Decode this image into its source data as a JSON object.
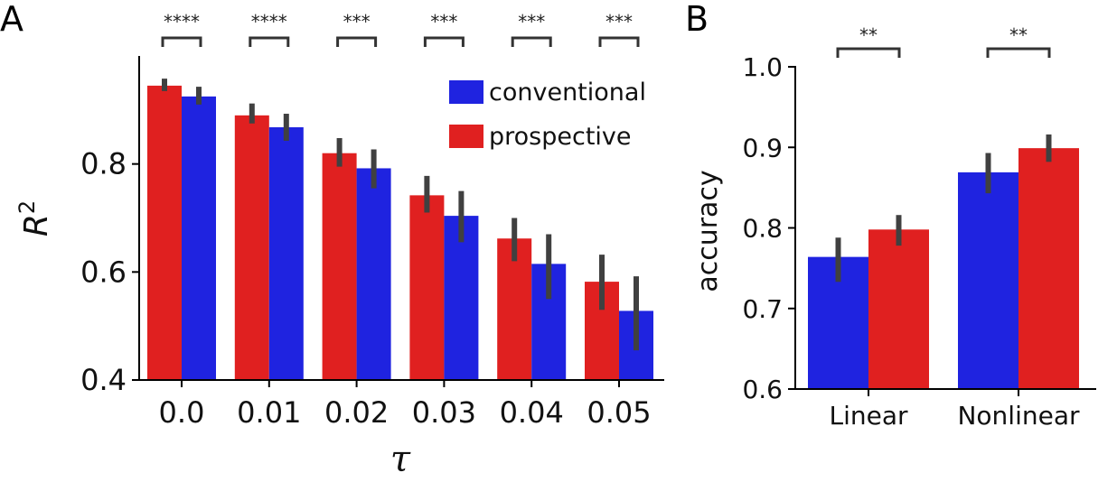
{
  "colors": {
    "conventional": "#1f23e0",
    "prospective": "#e02020",
    "errorbar": "#404040"
  },
  "chart_data": [
    {
      "type": "bar",
      "panel_label": "A",
      "xlabel": "τ",
      "ylabel": "R",
      "ylabel_superscript": "2",
      "ylim": [
        0.4,
        1.0
      ],
      "yticks": [
        0.4,
        0.6,
        0.8
      ],
      "ytick_labels": [
        "0.4",
        "0.6",
        "0.8"
      ],
      "categories": [
        "0.0",
        "0.01",
        "0.02",
        "0.03",
        "0.04",
        "0.05"
      ],
      "series": [
        {
          "name": "prospective",
          "values": [
            0.945,
            0.89,
            0.82,
            0.742,
            0.662,
            0.582
          ],
          "err_low": [
            0.935,
            0.875,
            0.795,
            0.71,
            0.62,
            0.53
          ],
          "err_high": [
            0.958,
            0.912,
            0.848,
            0.778,
            0.7,
            0.632
          ]
        },
        {
          "name": "conventional",
          "values": [
            0.925,
            0.868,
            0.792,
            0.704,
            0.615,
            0.528
          ],
          "err_low": [
            0.91,
            0.843,
            0.755,
            0.655,
            0.55,
            0.455
          ],
          "err_high": [
            0.943,
            0.893,
            0.827,
            0.75,
            0.67,
            0.592
          ]
        }
      ],
      "significance": [
        "****",
        "****",
        "***",
        "***",
        "***",
        "***"
      ],
      "legend": {
        "position": "top-right",
        "entries": [
          "conventional",
          "prospective"
        ]
      }
    },
    {
      "type": "bar",
      "panel_label": "B",
      "xlabel": "",
      "ylabel": "accuracy",
      "ylim": [
        0.6,
        1.0
      ],
      "yticks": [
        0.6,
        0.7,
        0.8,
        0.9,
        1.0
      ],
      "ytick_labels": [
        "0.6",
        "0.7",
        "0.8",
        "0.9",
        "1.0"
      ],
      "categories": [
        "Linear",
        "Nonlinear"
      ],
      "series": [
        {
          "name": "conventional",
          "values": [
            0.764,
            0.869
          ],
          "err_low": [
            0.733,
            0.843
          ],
          "err_high": [
            0.788,
            0.893
          ]
        },
        {
          "name": "prospective",
          "values": [
            0.798,
            0.899
          ],
          "err_low": [
            0.778,
            0.882
          ],
          "err_high": [
            0.816,
            0.916
          ]
        }
      ],
      "significance": [
        "**",
        "**"
      ]
    }
  ]
}
